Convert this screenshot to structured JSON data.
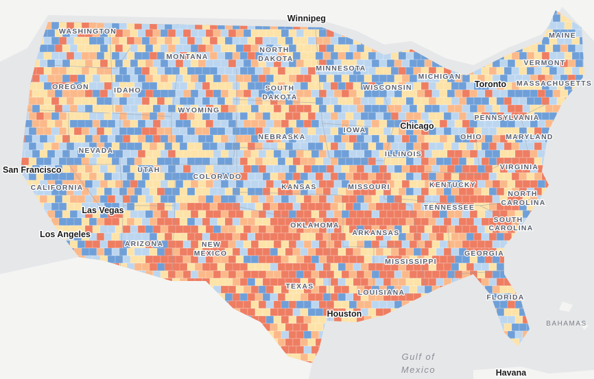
{
  "palette": {
    "water": "#e6e7e9",
    "land": "#f4f4f3",
    "dark_blue": "#6f9fd8",
    "light_blue": "#bcd6f0",
    "cream": "#fde3a8",
    "peach": "#fbb98a",
    "red": "#ee7d62"
  },
  "states": [
    {
      "key": "washington",
      "label": "WASHINGTON"
    },
    {
      "key": "oregon",
      "label": "OREGON"
    },
    {
      "key": "idaho",
      "label": "IDAHO"
    },
    {
      "key": "montana",
      "label": "MONTANA"
    },
    {
      "key": "wyoming",
      "label": "WYOMING"
    },
    {
      "key": "nevada",
      "label": "NEVADA"
    },
    {
      "key": "utah",
      "label": "UTAH"
    },
    {
      "key": "colorado",
      "label": "COLORADO"
    },
    {
      "key": "california",
      "label": "CALIFORNIA"
    },
    {
      "key": "arizona",
      "label": "ARIZONA"
    },
    {
      "key": "new_mexico_1",
      "label": "NEW"
    },
    {
      "key": "new_mexico_2",
      "label": "MEXICO"
    },
    {
      "key": "north_dakota_1",
      "label": "NORTH"
    },
    {
      "key": "north_dakota_2",
      "label": "DAKOTA"
    },
    {
      "key": "south_dakota_1",
      "label": "SOUTH"
    },
    {
      "key": "south_dakota_2",
      "label": "DAKOTA"
    },
    {
      "key": "nebraska",
      "label": "NEBRASKA"
    },
    {
      "key": "kansas",
      "label": "KANSAS"
    },
    {
      "key": "oklahoma",
      "label": "OKLAHOMA"
    },
    {
      "key": "texas",
      "label": "TEXAS"
    },
    {
      "key": "minnesota",
      "label": "MINNESOTA"
    },
    {
      "key": "iowa",
      "label": "IOWA"
    },
    {
      "key": "missouri",
      "label": "MISSOURI"
    },
    {
      "key": "arkansas",
      "label": "ARKANSAS"
    },
    {
      "key": "louisiana",
      "label": "LOUISIANA"
    },
    {
      "key": "wisconsin",
      "label": "WISCONSIN"
    },
    {
      "key": "illinois",
      "label": "ILLINOIS"
    },
    {
      "key": "mississippi",
      "label": "MISSISSIPPI"
    },
    {
      "key": "michigan",
      "label": "MICHIGAN"
    },
    {
      "key": "ohio",
      "label": "OHIO"
    },
    {
      "key": "kentucky",
      "label": "KENTUCKY"
    },
    {
      "key": "tennessee",
      "label": "TENNESSEE"
    },
    {
      "key": "georgia",
      "label": "GEORGIA"
    },
    {
      "key": "florida",
      "label": "FLORIDA"
    },
    {
      "key": "north_carolina_1",
      "label": "NORTH"
    },
    {
      "key": "north_carolina_2",
      "label": "CAROLINA"
    },
    {
      "key": "south_carolina_1",
      "label": "SOUTH"
    },
    {
      "key": "south_carolina_2",
      "label": "CAROLINA"
    },
    {
      "key": "virginia",
      "label": "VIRGINIA"
    },
    {
      "key": "maryland",
      "label": "MARYLAND"
    },
    {
      "key": "pennsylvania",
      "label": "PENNSYLVANIA"
    },
    {
      "key": "vermont",
      "label": "VERMONT"
    },
    {
      "key": "massachusetts",
      "label": "MASSACHUSETTS"
    },
    {
      "key": "maine",
      "label": "MAINE"
    }
  ],
  "cities": [
    {
      "key": "winnipeg",
      "label": "Winnipeg"
    },
    {
      "key": "toronto",
      "label": "Toronto"
    },
    {
      "key": "chicago",
      "label": "Chicago"
    },
    {
      "key": "san_francisco",
      "label": "San Francisco"
    },
    {
      "key": "las_vegas",
      "label": "Las Vegas"
    },
    {
      "key": "los_angeles",
      "label": "Los Angeles"
    },
    {
      "key": "houston",
      "label": "Houston"
    },
    {
      "key": "havana",
      "label": "Havana"
    }
  ],
  "water_labels": [
    {
      "key": "gulf_1",
      "label": "Gulf of"
    },
    {
      "key": "gulf_2",
      "label": "Mexico"
    }
  ],
  "country_labels": [
    {
      "key": "bahamas",
      "label": "BAHAMAS"
    }
  ]
}
